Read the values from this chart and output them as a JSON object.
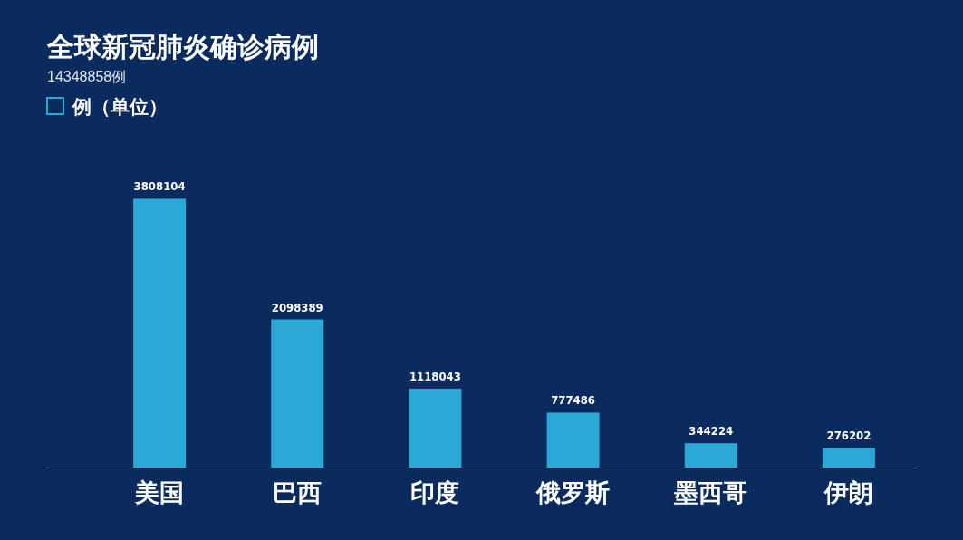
{
  "chart_data": {
    "type": "bar",
    "title": "全球新冠肺炎确诊病例",
    "subtitle": "14348858例",
    "categories": [
      "美国",
      "巴西",
      "印度",
      "俄罗斯",
      "墨西哥",
      "伊朗"
    ],
    "series": [
      {
        "name": "例（单位）",
        "color": "#2aa8d6",
        "values": [
          3808104,
          2098389,
          1118043,
          777486,
          344224,
          276202
        ]
      }
    ],
    "data_labels": true,
    "legend": "top left",
    "grid": false
  }
}
